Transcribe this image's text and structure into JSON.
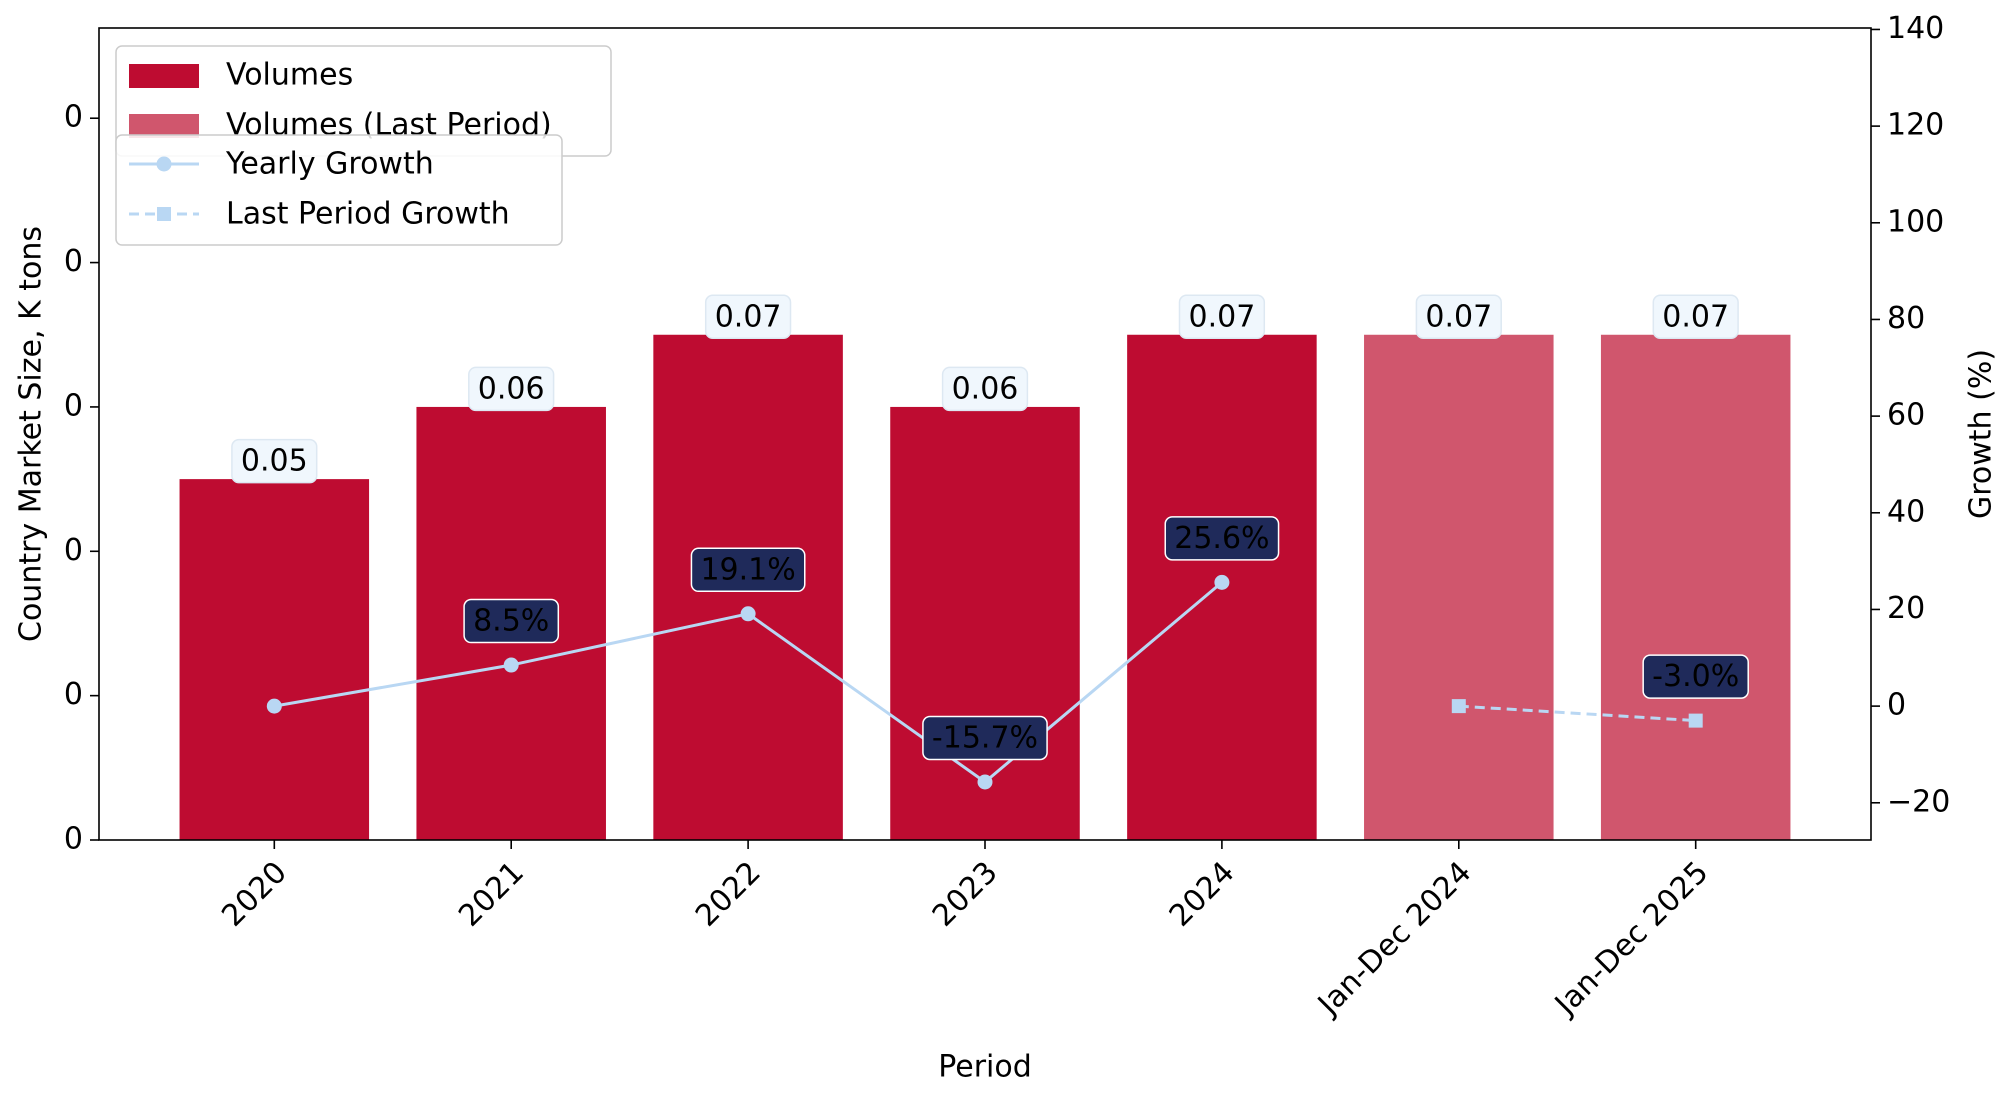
{
  "chart_data": {
    "type": "bar_line",
    "x_label": "Period",
    "y_label": "Country Market Size, K tons",
    "y2_label": "Growth (%)",
    "categories": [
      "2020",
      "2021",
      "2022",
      "2023",
      "2024",
      "Jan-Dec 2024",
      "Jan-Dec 2025"
    ],
    "series": [
      {
        "name": "Volumes",
        "kind": "bar",
        "color": "#be0c31",
        "values": [
          0.05,
          0.06,
          0.07,
          0.06,
          0.07,
          null,
          null
        ]
      },
      {
        "name": "Volumes (Last Period)",
        "kind": "bar",
        "color": "#d0566d",
        "values": [
          null,
          null,
          null,
          null,
          null,
          0.07,
          0.07
        ]
      },
      {
        "name": "Yearly Growth",
        "kind": "line",
        "axis": "y2",
        "color": "#b9d7f3",
        "marker": "circle",
        "dash": false,
        "values": [
          0,
          8.5,
          19.1,
          -15.7,
          25.6,
          null,
          null
        ],
        "value_labels": [
          null,
          "8.5%",
          "19.1%",
          "-15.7%",
          "25.6%",
          null,
          null
        ]
      },
      {
        "name": "Last Period Growth",
        "kind": "line",
        "axis": "y2",
        "color": "#b9d7f3",
        "marker": "square",
        "dash": true,
        "values": [
          null,
          null,
          null,
          null,
          null,
          0,
          -3.0
        ],
        "value_labels": [
          null,
          null,
          null,
          null,
          null,
          null,
          "-3.0%"
        ]
      }
    ],
    "ylim": [
      0,
      0.1125
    ],
    "yticks": [
      0,
      {
        "value": 0.02,
        "label": "0"
      },
      {
        "value": 0.04,
        "label": "0"
      },
      {
        "value": 0.06,
        "label": "0"
      },
      {
        "value": 0.08,
        "label": "0"
      },
      {
        "value": 0.1,
        "label": "0"
      }
    ],
    "y2lim": [
      -27.7,
      140.3
    ],
    "y2ticks": [
      {
        "value": -20,
        "label": "−20"
      },
      0,
      20,
      40,
      60,
      80,
      100,
      120,
      140
    ],
    "y_color": "#0000dd",
    "y2_color": "#e8000b"
  }
}
